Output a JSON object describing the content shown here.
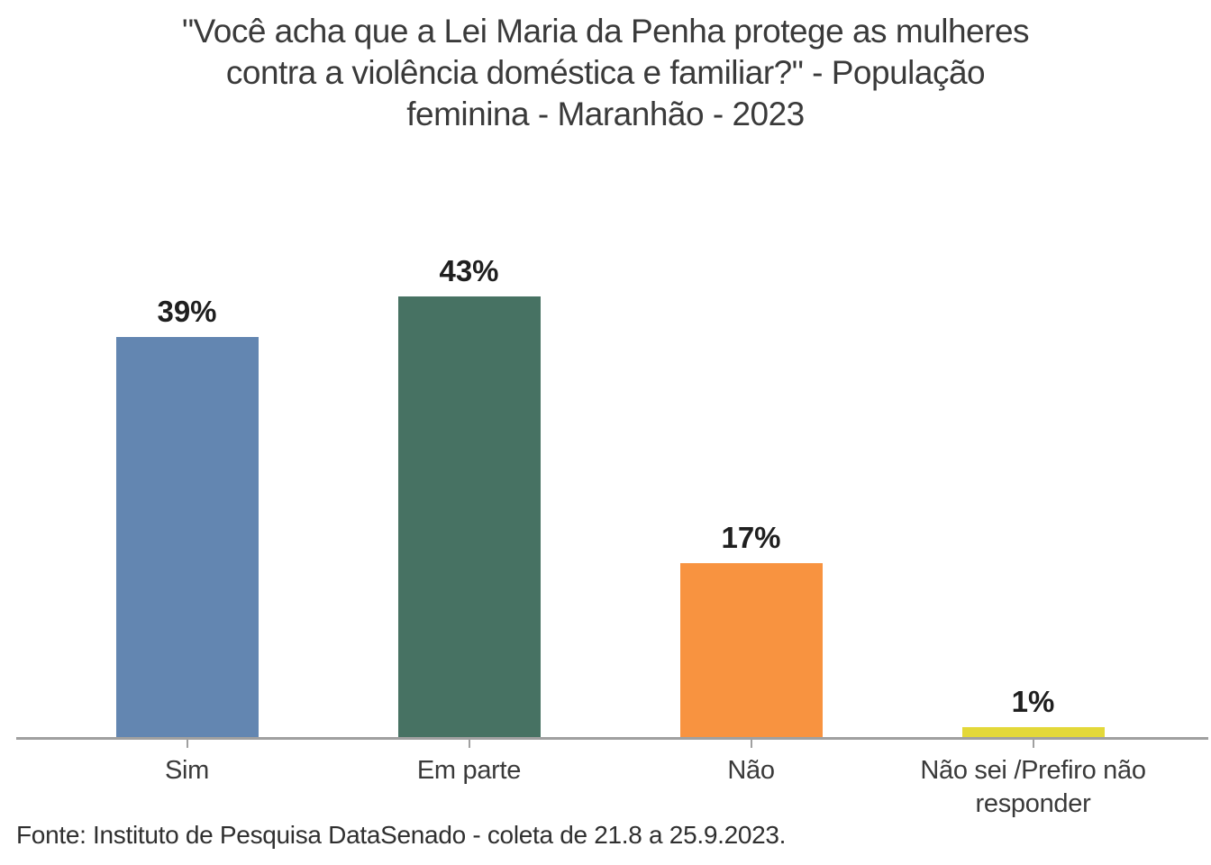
{
  "title": {
    "line1": "\"Você acha que a Lei Maria da Penha protege as mulheres",
    "line2": "contra a violência doméstica e familiar?\" - População",
    "line3": "feminina - Maranhão - 2023"
  },
  "footer": {
    "source_text": "Fonte: Instituto de Pesquisa DataSenado - coleta de 21.8 a 25.9.2023."
  },
  "chart_data": {
    "type": "bar",
    "title": "\"Você acha que a Lei Maria da Penha protege as mulheres contra a violência doméstica e familiar?\" - População feminina - Maranhão - 2023",
    "categories": [
      "Sim",
      "Em parte",
      "Não",
      "Não sei /Prefiro não responder"
    ],
    "values": [
      39,
      43,
      17,
      1
    ],
    "value_labels": [
      "39%",
      "43%",
      "17%",
      "1%"
    ],
    "bar_colors": [
      "#6386b1",
      "#477263",
      "#f89340",
      "#e3d839"
    ],
    "xlabel": "",
    "ylabel": "",
    "ylim": [
      0,
      46
    ],
    "grid": false,
    "legend": false,
    "axis_color": "#a0a0a0",
    "title_color": "#3a3a3a",
    "label_color": "#1f1f1f",
    "source": "Fonte: Instituto de Pesquisa DataSenado - coleta de 21.8 a 25.9.2023."
  }
}
